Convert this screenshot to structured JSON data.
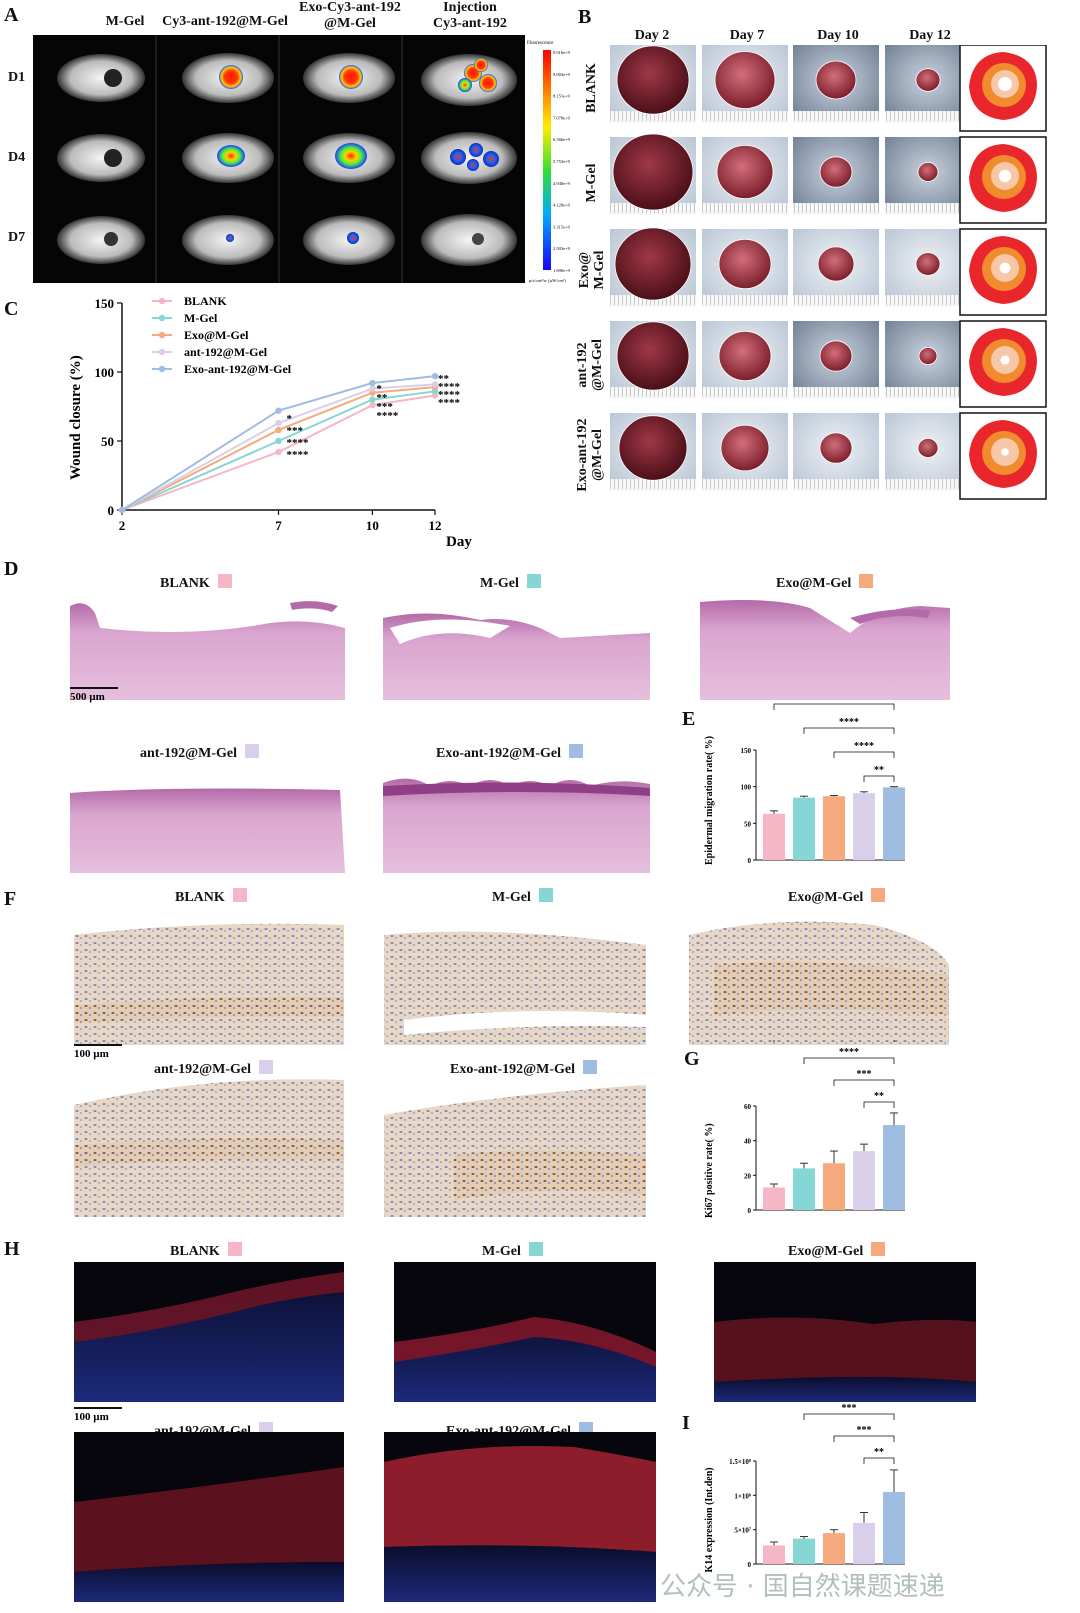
{
  "panels": {
    "A": {
      "label": "A",
      "columns": [
        "M-Gel",
        "Cy3-ant-192@M-Gel",
        "Exo-Cy3-ant-192\n@M-Gel",
        "Injection\nCy3-ant-192"
      ],
      "rows": [
        "D1",
        "D4",
        "D7"
      ],
      "colorbar_title": "Fluorescence",
      "colorbar_ticks": [
        "9.616e+9",
        "9.003e+9",
        "8.151e+9",
        "7.078e+9",
        "6.566e+9",
        "5.753e+9",
        "4.940e+9",
        "4.128e+9",
        "3.315e+9",
        "2.503e+9",
        "1.690e+9"
      ],
      "colorbar_unit": "p/s/cm²/sr\n(µW/cm²)"
    },
    "B": {
      "label": "B",
      "columns": [
        "Day 2",
        "Day 7",
        "Day 10",
        "Day 12"
      ],
      "rows": [
        "BLANK",
        "M-Gel",
        "Exo@\nM-Gel",
        "ant-192\n@M-Gel",
        "Exo-ant-192\n@M-Gel"
      ]
    },
    "C": {
      "label": "C",
      "ylabel": "Wound closure (%)",
      "xlabel": "Day",
      "legend": [
        "BLANK",
        "M-Gel",
        "Exo@M-Gel",
        "ant-192@M-Gel",
        "Exo-ant-192@M-Gel"
      ],
      "sig_d7": [
        "*",
        "***",
        "****",
        "****"
      ],
      "sig_d10": [
        "*",
        "**",
        "***",
        "****"
      ],
      "sig_d12": [
        "**",
        "****",
        "****",
        "****"
      ]
    },
    "D": {
      "label": "D",
      "titles": [
        "BLANK",
        "M-Gel",
        "Exo@M-Gel",
        "ant-192@M-Gel",
        "Exo-ant-192@M-Gel"
      ],
      "scale": "500 µm"
    },
    "E": {
      "label": "E",
      "ylabel": "Epidermal migration rate( %)",
      "sig": [
        "****",
        "****",
        "****",
        "**"
      ]
    },
    "F": {
      "label": "F",
      "titles": [
        "BLANK",
        "M-Gel",
        "Exo@M-Gel",
        "ant-192@M-Gel",
        "Exo-ant-192@M-Gel"
      ],
      "scale": "100 µm"
    },
    "G": {
      "label": "G",
      "ylabel": "Ki67 positive rate( %)",
      "sig": [
        "****",
        "****",
        "***",
        "**"
      ]
    },
    "H": {
      "label": "H",
      "titles": [
        "BLANK",
        "M-Gel",
        "Exo@M-Gel",
        "ant-192@M-Gel",
        "Exo-ant-192@M-Gel"
      ],
      "scale": "100 µm"
    },
    "I": {
      "label": "I",
      "ylabel": "K14 expression (Int.den)",
      "sig": [
        "****",
        "***",
        "***",
        "**"
      ]
    }
  },
  "colors": {
    "blank": "#f5b6c6",
    "mgel": "#86d6d6",
    "exo": "#f7a97e",
    "ant": "#d9cfea",
    "exoant": "#9fbde0"
  },
  "watermark": "公众号 · 国自然课题速递",
  "chart_data": [
    {
      "type": "line",
      "x": [
        2,
        7,
        10,
        12
      ],
      "xlim": [
        2,
        12
      ],
      "ylim": [
        0,
        150
      ],
      "yticks": [
        0,
        50,
        100,
        150
      ],
      "series": [
        {
          "name": "BLANK",
          "values": [
            0,
            42,
            76,
            83
          ]
        },
        {
          "name": "M-Gel",
          "values": [
            0,
            50,
            80,
            86
          ]
        },
        {
          "name": "Exo@M-Gel",
          "values": [
            0,
            58,
            85,
            89
          ]
        },
        {
          "name": "ant-192@M-Gel",
          "values": [
            0,
            63,
            88,
            91
          ]
        },
        {
          "name": "Exo-ant-192@M-Gel",
          "values": [
            0,
            72,
            92,
            97
          ]
        }
      ]
    },
    {
      "type": "bar",
      "ylim": [
        0,
        150
      ],
      "yticks": [
        0,
        50,
        100,
        150
      ],
      "values": [
        63,
        85,
        87,
        91,
        99
      ],
      "errors": [
        4,
        2,
        1,
        2,
        1
      ]
    },
    {
      "type": "bar",
      "ylim": [
        0,
        60
      ],
      "yticks": [
        0,
        20,
        40,
        60
      ],
      "values": [
        13,
        24,
        27,
        34,
        49
      ],
      "errors": [
        2,
        3,
        7,
        4,
        7
      ]
    },
    {
      "type": "bar",
      "ylim": [
        0,
        1.5
      ],
      "yticks": [
        "0",
        "5×10⁷",
        "1×10⁸",
        "1.5×10⁸"
      ],
      "values": [
        0.27,
        0.37,
        0.45,
        0.6,
        1.05
      ],
      "errors": [
        0.05,
        0.03,
        0.05,
        0.15,
        0.32
      ]
    }
  ]
}
